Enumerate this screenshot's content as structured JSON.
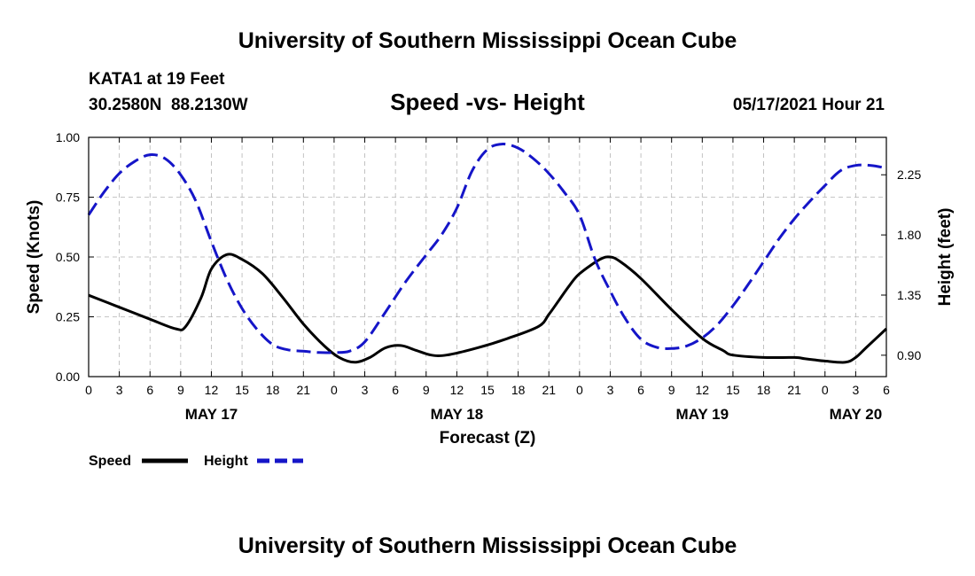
{
  "header": {
    "title_top": "University of Southern Mississippi Ocean Cube",
    "station": "KATA1 at 19 Feet",
    "coords": "30.2580N  88.2130W",
    "chart_title": "Speed -vs- Height",
    "timestamp": "05/17/2021 Hour 21",
    "title_bottom": "University of Southern Mississippi Ocean Cube"
  },
  "legend": {
    "speed_label": "Speed",
    "height_label": "Height"
  },
  "colors": {
    "speed": "#000000",
    "height": "#1515c8",
    "grid": "#b4b4b4"
  },
  "chart_data": {
    "type": "line",
    "title": "Speed -vs- Height",
    "xlabel": "Forecast (Z)",
    "ylabel_left": "Speed (Knots)",
    "ylabel_right": "Height (feet)",
    "x_range_hours": [
      0,
      78
    ],
    "x_ticks": [
      {
        "h": 0,
        "label": "0"
      },
      {
        "h": 3,
        "label": "3"
      },
      {
        "h": 6,
        "label": "6"
      },
      {
        "h": 9,
        "label": "9"
      },
      {
        "h": 12,
        "label": "12"
      },
      {
        "h": 15,
        "label": "15"
      },
      {
        "h": 18,
        "label": "18"
      },
      {
        "h": 21,
        "label": "21"
      },
      {
        "h": 24,
        "label": "0"
      },
      {
        "h": 27,
        "label": "3"
      },
      {
        "h": 30,
        "label": "6"
      },
      {
        "h": 33,
        "label": "9"
      },
      {
        "h": 36,
        "label": "12"
      },
      {
        "h": 39,
        "label": "15"
      },
      {
        "h": 42,
        "label": "18"
      },
      {
        "h": 45,
        "label": "21"
      },
      {
        "h": 48,
        "label": "0"
      },
      {
        "h": 51,
        "label": "3"
      },
      {
        "h": 54,
        "label": "6"
      },
      {
        "h": 57,
        "label": "9"
      },
      {
        "h": 60,
        "label": "12"
      },
      {
        "h": 63,
        "label": "15"
      },
      {
        "h": 66,
        "label": "18"
      },
      {
        "h": 69,
        "label": "21"
      },
      {
        "h": 72,
        "label": "0"
      },
      {
        "h": 75,
        "label": "3"
      },
      {
        "h": 78,
        "label": "6"
      }
    ],
    "date_labels": [
      {
        "h": 12,
        "label": "MAY 17"
      },
      {
        "h": 36,
        "label": "MAY 18"
      },
      {
        "h": 60,
        "label": "MAY 19"
      },
      {
        "h": 75,
        "label": "MAY 20"
      }
    ],
    "y_left": {
      "min": 0,
      "max": 1,
      "ticks": [
        "0.00",
        "0.25",
        "0.50",
        "0.75",
        "1.00"
      ]
    },
    "y_right": {
      "min": 0.74,
      "max": 2.53,
      "ticks": [
        "0.90",
        "1.35",
        "1.80",
        "2.25"
      ]
    },
    "series": [
      {
        "name": "Speed",
        "axis": "left",
        "style": "solid",
        "x": [
          0,
          3,
          6,
          8.5,
          9.5,
          11,
          12,
          13.5,
          15,
          17,
          19,
          21,
          23,
          24.5,
          26,
          27.5,
          29,
          30.5,
          32,
          33.5,
          35,
          38,
          41,
          44,
          45,
          46,
          47,
          48,
          50,
          51,
          52,
          54,
          57,
          60,
          62,
          63,
          66,
          69,
          70,
          71,
          72,
          74,
          75,
          76,
          78
        ],
        "y": [
          0.34,
          0.29,
          0.24,
          0.2,
          0.21,
          0.33,
          0.45,
          0.51,
          0.49,
          0.43,
          0.33,
          0.22,
          0.13,
          0.08,
          0.06,
          0.08,
          0.12,
          0.13,
          0.11,
          0.09,
          0.09,
          0.12,
          0.16,
          0.21,
          0.26,
          0.32,
          0.38,
          0.43,
          0.49,
          0.5,
          0.48,
          0.41,
          0.28,
          0.16,
          0.11,
          0.09,
          0.08,
          0.08,
          0.075,
          0.07,
          0.065,
          0.06,
          0.08,
          0.12,
          0.2
        ]
      },
      {
        "name": "Height",
        "axis": "right",
        "style": "dashed",
        "x": [
          0,
          1.5,
          3,
          4.5,
          6,
          7.5,
          9,
          10.5,
          12,
          13.5,
          15,
          16.5,
          18,
          19.5,
          21,
          22.5,
          24,
          25.5,
          27,
          29,
          31,
          33,
          34.5,
          36,
          37.5,
          39,
          40.5,
          42,
          43.5,
          45,
          46.5,
          48,
          49.5,
          51,
          52.5,
          54,
          55.5,
          57,
          58.5,
          60,
          61.5,
          63,
          64.5,
          66,
          67.5,
          69,
          70.5,
          72,
          73.5,
          75,
          76.5,
          78
        ],
        "y": [
          1.95,
          2.12,
          2.26,
          2.35,
          2.4,
          2.37,
          2.25,
          2.05,
          1.75,
          1.47,
          1.25,
          1.09,
          0.98,
          0.94,
          0.93,
          0.92,
          0.92,
          0.93,
          1.0,
          1.22,
          1.45,
          1.65,
          1.8,
          2.0,
          2.28,
          2.44,
          2.48,
          2.45,
          2.37,
          2.26,
          2.12,
          1.95,
          1.62,
          1.38,
          1.17,
          1.02,
          0.96,
          0.95,
          0.97,
          1.03,
          1.13,
          1.27,
          1.43,
          1.6,
          1.77,
          1.92,
          2.05,
          2.17,
          2.28,
          2.32,
          2.32,
          2.3
        ]
      }
    ]
  }
}
